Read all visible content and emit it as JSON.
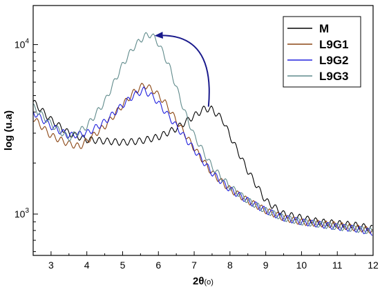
{
  "chart_data": {
    "type": "line",
    "xlabel_main": "2θ",
    "xlabel_unit": "(o)",
    "ylabel": "log (u.a)",
    "yscale": "log",
    "xlim": [
      2.5,
      12
    ],
    "ylim": [
      570,
      17000
    ],
    "x_ticks": [
      3,
      4,
      5,
      6,
      7,
      8,
      9,
      10,
      11,
      12
    ],
    "y_ticks": [
      {
        "value": 1000,
        "base": "10",
        "exp": "3"
      },
      {
        "value": 10000,
        "base": "10",
        "exp": "4"
      }
    ],
    "legend_position": "top-right",
    "series": [
      {
        "name": "M",
        "color": "#000000",
        "x": [
          2.5,
          3.0,
          3.5,
          4.0,
          4.5,
          5.0,
          5.5,
          6.0,
          6.5,
          7.0,
          7.3,
          7.5,
          7.8,
          8.0,
          8.5,
          9.0,
          9.5,
          10.0,
          10.5,
          11.0,
          11.5,
          12.0
        ],
        "y": [
          4600,
          3600,
          3000,
          2750,
          2700,
          2650,
          2700,
          2850,
          3200,
          3800,
          4200,
          4150,
          3600,
          2900,
          1800,
          1200,
          1000,
          950,
          900,
          880,
          860,
          820
        ]
      },
      {
        "name": "L9G1",
        "color": "#8b4513",
        "x": [
          2.5,
          3.0,
          3.5,
          3.8,
          4.0,
          4.5,
          5.0,
          5.3,
          5.6,
          5.9,
          6.2,
          6.6,
          7.0,
          7.5,
          8.0,
          8.5,
          9.0,
          9.5,
          10.0,
          10.5,
          11.0,
          11.5,
          12.0
        ],
        "y": [
          3700,
          2900,
          2600,
          2500,
          2700,
          3300,
          4400,
          5200,
          5800,
          5300,
          4500,
          3300,
          2450,
          1750,
          1400,
          1200,
          1050,
          950,
          900,
          880,
          860,
          830,
          800
        ]
      },
      {
        "name": "L9G2",
        "color": "#2020dd",
        "x": [
          2.5,
          3.0,
          3.5,
          4.0,
          4.5,
          5.0,
          5.3,
          5.6,
          5.9,
          6.2,
          6.6,
          7.0,
          7.5,
          8.0,
          8.5,
          9.0,
          9.5,
          10.0,
          10.5,
          11.0,
          11.5,
          12.0
        ],
        "y": [
          4000,
          3300,
          2900,
          3000,
          3500,
          4400,
          5000,
          5400,
          4800,
          4000,
          3100,
          2400,
          1750,
          1400,
          1200,
          1050,
          950,
          900,
          870,
          840,
          820,
          780
        ]
      },
      {
        "name": "L9G3",
        "color": "#5f8a8b",
        "x": [
          2.5,
          3.0,
          3.5,
          4.0,
          4.5,
          5.0,
          5.3,
          5.6,
          5.8,
          6.0,
          6.3,
          6.7,
          7.0,
          7.5,
          8.0,
          8.5,
          9.0,
          9.5,
          10.0,
          10.5,
          11.0,
          11.5,
          12.0
        ],
        "y": [
          4300,
          3400,
          2800,
          3300,
          4600,
          7600,
          9600,
          11200,
          11500,
          10200,
          7500,
          4200,
          2900,
          1900,
          1450,
          1200,
          1050,
          950,
          900,
          870,
          840,
          820,
          790
        ]
      }
    ],
    "annotation": {
      "type": "curved-arrow",
      "color": "#1a1a8c",
      "from": {
        "x": 7.4,
        "y": 4300
      },
      "to": {
        "x": 5.95,
        "y": 11300
      }
    }
  }
}
